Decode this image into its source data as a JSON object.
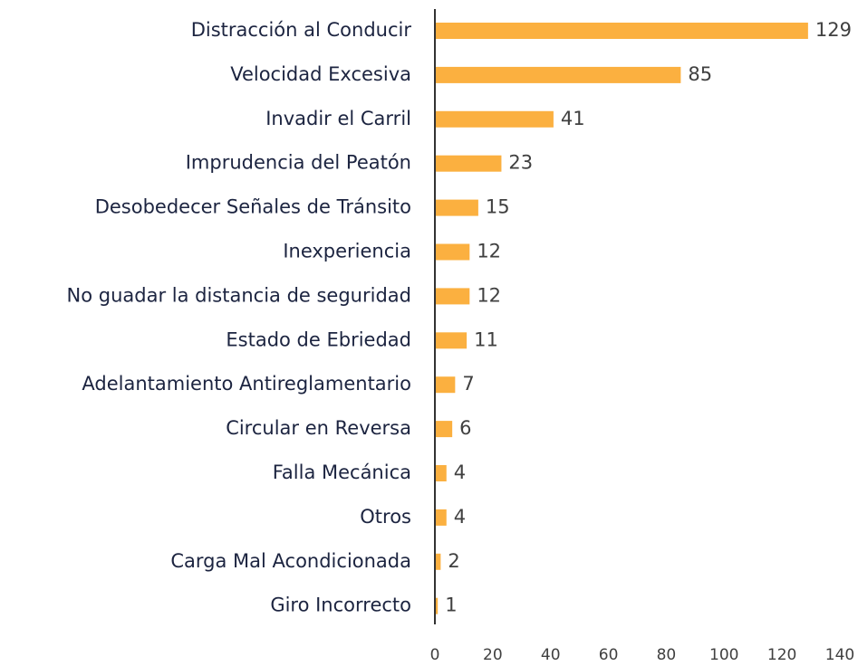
{
  "chart_data": {
    "type": "barh",
    "categories": [
      "Distracción al Conducir",
      "Velocidad Excesiva",
      "Invadir el Carril",
      "Imprudencia del Peatón",
      "Desobedecer Señales de Tránsito",
      "Inexperiencia",
      "No guadar la distancia de seguridad",
      "Estado de Ebriedad",
      "Adelantamiento Antireglamentario",
      "Circular en Reversa",
      "Falla Mecánica",
      "Otros",
      "Carga Mal Acondicionada",
      "Giro Incorrecto"
    ],
    "values": [
      129,
      85,
      41,
      23,
      15,
      12,
      12,
      11,
      7,
      6,
      4,
      4,
      2,
      1
    ],
    "color": "#fbb040",
    "xlim": [
      0,
      140
    ],
    "xticks": [
      0,
      20,
      40,
      60,
      80,
      100,
      120,
      140
    ]
  }
}
